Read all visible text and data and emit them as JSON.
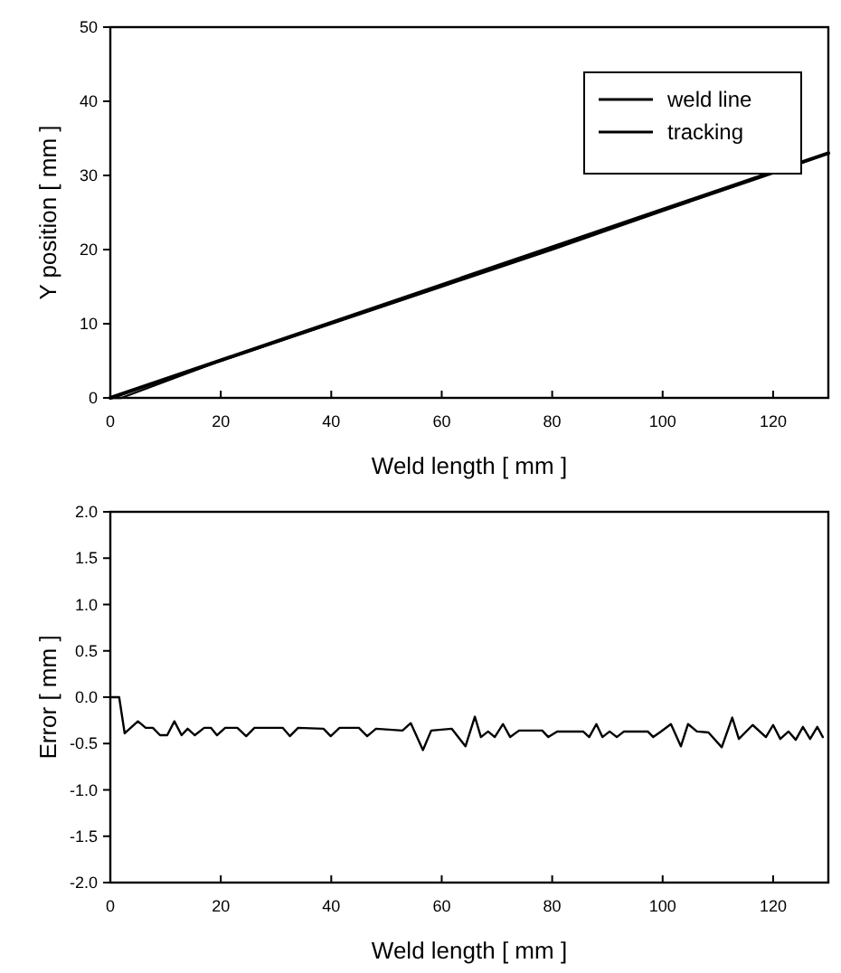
{
  "chart_data": [
    {
      "type": "line",
      "xlabel": "Weld length [ mm ]",
      "ylabel": "Y position [ mm ]",
      "xlim": [
        0,
        130
      ],
      "ylim": [
        0,
        50
      ],
      "xticks": [
        0,
        20,
        40,
        60,
        80,
        100,
        120
      ],
      "yticks": [
        0,
        10,
        20,
        30,
        40,
        50
      ],
      "legend": "top right",
      "series": [
        {
          "name": "weld line",
          "color": "#000000",
          "x": [
            0,
            130
          ],
          "values": [
            0,
            33
          ]
        },
        {
          "name": "tracking",
          "color": "#000000",
          "x": [
            0,
            2,
            20,
            40,
            60,
            80,
            100,
            120,
            130
          ],
          "values": [
            0,
            0,
            5,
            10,
            15,
            20,
            25.2,
            30.3,
            33
          ]
        }
      ]
    },
    {
      "type": "line",
      "xlabel": "Weld length [ mm ]",
      "ylabel": "Error [ mm ]",
      "xlim": [
        0,
        130
      ],
      "ylim": [
        -2,
        2
      ],
      "xticks": [
        0,
        20,
        40,
        60,
        80,
        100,
        120
      ],
      "yticks": [
        {
          "value": -2,
          "label": "-2.0"
        },
        -1.5,
        {
          "value": -1,
          "label": "-1.0"
        },
        -0.5,
        {
          "value": 0,
          "label": "0.0"
        },
        0.5,
        {
          "value": 1,
          "label": "1.0"
        },
        1.5,
        {
          "value": 2,
          "label": "2.0"
        }
      ],
      "series": [
        {
          "color": "#000000",
          "x": [
            0,
            1.6,
            2.6,
            5,
            6.4,
            7.7,
            9,
            10.3,
            11.6,
            12.9,
            14,
            15.3,
            17,
            18.2,
            19.3,
            20.8,
            23,
            24.6,
            26.1,
            31.2,
            32.5,
            34,
            38.6,
            39.9,
            41.5,
            45,
            46.5,
            48.1,
            52.9,
            54.4,
            56.6,
            58.1,
            61.8,
            64.3,
            66,
            67.1,
            68.4,
            69.6,
            71.1,
            72.4,
            74,
            78.2,
            79.3,
            80.9,
            85.6,
            86.7,
            88,
            89.1,
            90.4,
            91.7,
            93,
            97.3,
            98.3,
            99.7,
            101.5,
            103.3,
            104.6,
            106.2,
            108.3,
            110.7,
            112.6,
            113.8,
            116.3,
            118.7,
            120,
            121.3,
            122.8,
            124.1,
            125.4,
            126.7,
            128,
            129
          ],
          "values": [
            0,
            0,
            -0.39,
            -0.26,
            -0.33,
            -0.33,
            -0.41,
            -0.41,
            -0.26,
            -0.41,
            -0.34,
            -0.41,
            -0.33,
            -0.33,
            -0.41,
            -0.33,
            -0.33,
            -0.42,
            -0.33,
            -0.33,
            -0.42,
            -0.33,
            -0.34,
            -0.42,
            -0.33,
            -0.33,
            -0.42,
            -0.34,
            -0.36,
            -0.28,
            -0.57,
            -0.36,
            -0.34,
            -0.53,
            -0.21,
            -0.43,
            -0.37,
            -0.43,
            -0.29,
            -0.43,
            -0.36,
            -0.36,
            -0.43,
            -0.37,
            -0.37,
            -0.43,
            -0.29,
            -0.43,
            -0.37,
            -0.43,
            -0.37,
            -0.37,
            -0.43,
            -0.37,
            -0.29,
            -0.53,
            -0.29,
            -0.37,
            -0.38,
            -0.54,
            -0.22,
            -0.45,
            -0.3,
            -0.43,
            -0.3,
            -0.45,
            -0.37,
            -0.46,
            -0.32,
            -0.45,
            -0.32,
            -0.43
          ]
        }
      ]
    }
  ]
}
